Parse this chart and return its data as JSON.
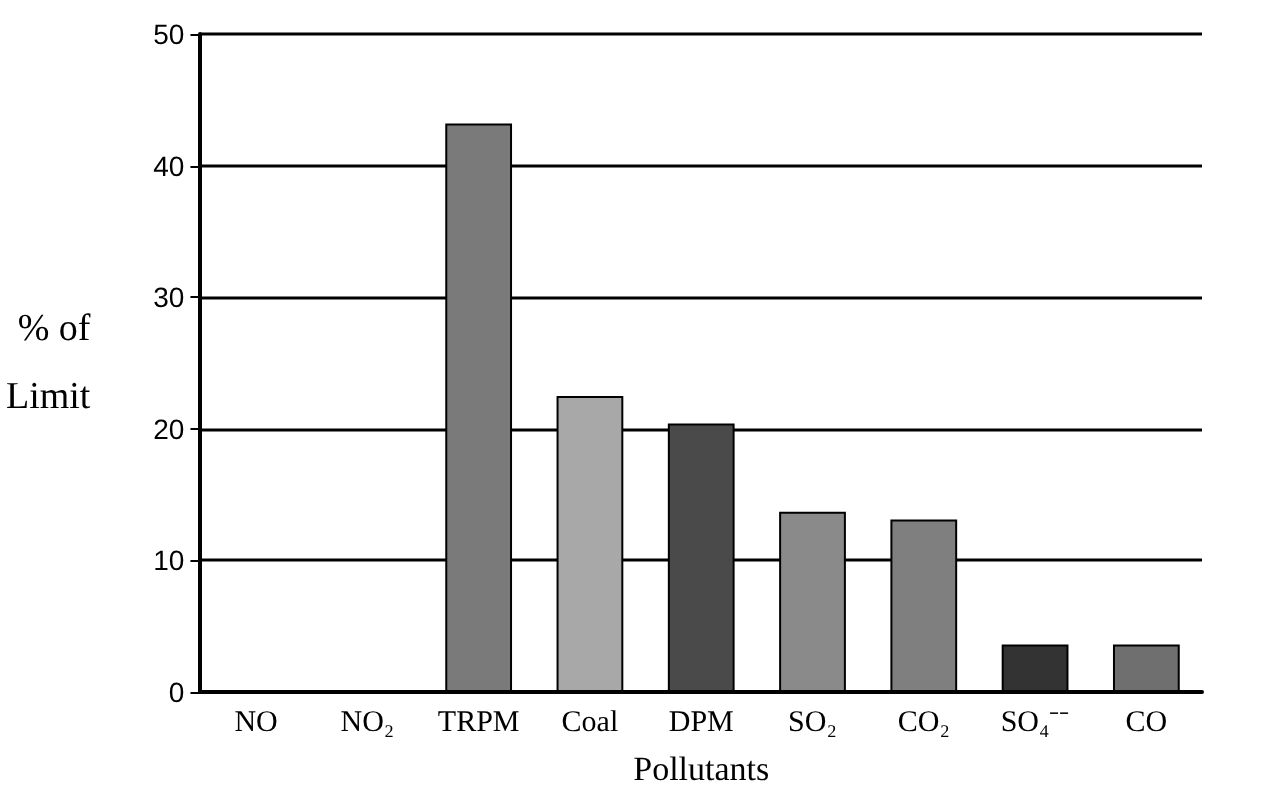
{
  "chart_data": {
    "type": "bar",
    "xlabel": "Pollutants",
    "ylabel": "% of Limit",
    "categories": [
      "NO",
      "NO₂",
      "TRPM",
      "Coal",
      "DPM",
      "SO₂",
      "CO₂",
      "SO₄⁻⁻",
      "CO"
    ],
    "values": [
      0,
      0,
      43.2,
      22.5,
      20.4,
      13.7,
      13.1,
      3.6,
      3.6
    ],
    "colors": [
      "#000000",
      "#000000",
      "#7a7a7a",
      "#a8a8a8",
      "#4a4a4a",
      "#8a8a8a",
      "#7f7f7f",
      "#333333",
      "#6f6f6f"
    ],
    "ylim": [
      0,
      50
    ],
    "yticks": [
      0,
      10,
      20,
      30,
      40,
      50
    ],
    "grid": "y"
  }
}
